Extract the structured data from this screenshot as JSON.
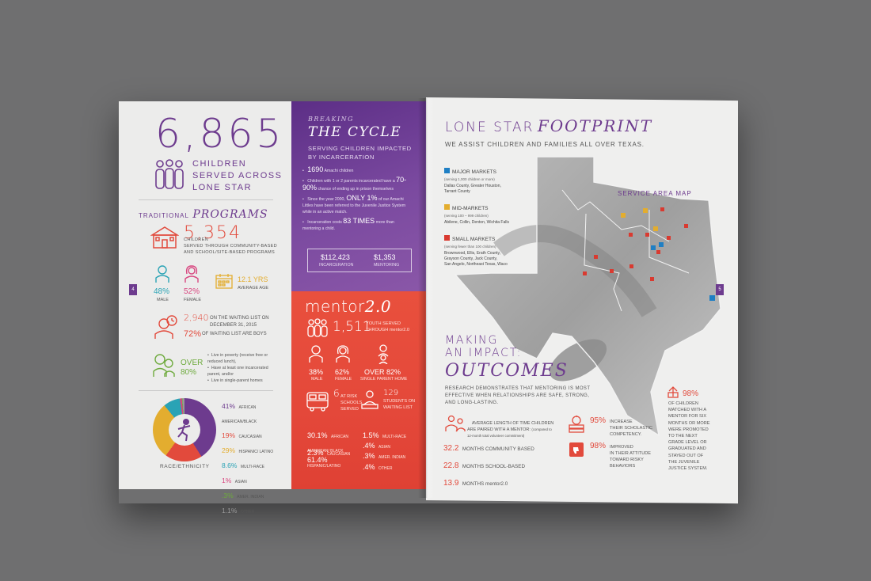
{
  "left": {
    "big_number": "6,865",
    "children_served": "CHILDREN\nSERVED ACROSS\nLONE STAR",
    "programs_label_small": "TRADITIONAL",
    "programs_label_big": "PROGRAMS",
    "community_number": "5,354",
    "community_text": "CHILDREN\nSERVED THROUGH COMMUNITY-BASED\nAND SCHOOL/SITE-BASED PROGRAMS",
    "male_pct": "48%",
    "male_label": "MALE",
    "female_pct": "52%",
    "female_label": "FEMALE",
    "avg_age": "12.1 YRS",
    "avg_age_label": "AVERAGE AGE",
    "waiting_number": "2,940",
    "waiting_text": "ON THE WAITING LIST ON\nDECEMBER 31, 2015",
    "boys_pct": "72%",
    "boys_text": "OF WAITING LIST ARE BOYS",
    "over_pct": "OVER\n80%",
    "over_bullets": [
      "Live in poverty (receive free or reduced lunch),",
      "Have at least one incarcerated parent, and/or",
      "Live in single-parent homes"
    ],
    "page_number": "4",
    "race_label": "RACE/ETHNICITY",
    "race": [
      {
        "pct": "41%",
        "label": "AFRICAN AMERICAN/BLACK",
        "color": "#6d3b8e"
      },
      {
        "pct": "19%",
        "label": "CAUCASIAN",
        "color": "#e24a3c"
      },
      {
        "pct": "29%",
        "label": "HISPANIC/ LATINO",
        "color": "#e3ad2f"
      },
      {
        "pct": "8.6%",
        "label": "MULTI-RACE",
        "color": "#2aa3b5"
      },
      {
        "pct": "1%",
        "label": "ASIAN",
        "color": "#d8467f"
      },
      {
        "pct": ".3%",
        "label": "AMER. INDIAN",
        "color": "#6eaa3d"
      },
      {
        "pct": "1.1%",
        "label": "OTHER",
        "color": "#999999"
      }
    ]
  },
  "purple": {
    "breaking": "BREAKING",
    "the_cycle": "THE CYCLE",
    "serving": "SERVING CHILDREN IMPACTED\nBY INCARCERATION",
    "bullets": [
      {
        "pre": "",
        "big": "1690",
        "post": " Amachi children"
      },
      {
        "pre": "Children with 1 or 2 parents incarcerated have a ",
        "big": "70-90%",
        "post": " chance of ending up in prison themselves"
      },
      {
        "pre": "Since the year 2000, ",
        "big": "ONLY 1%",
        "post": " of our Amachi Littles have been referred to the Juvenile Justice System while in an active match."
      },
      {
        "pre": "Incarceration costs ",
        "big": "83 TIMES",
        "post": " more than mentoring a child."
      }
    ],
    "incarceration_cost": "$112,423",
    "incarceration_label": "INCARCERATION",
    "mentoring_cost": "$1,353",
    "mentoring_label": "MENTORING"
  },
  "red": {
    "title_plain": "mentor",
    "title_italic": "2.0",
    "youth_number": "1,511",
    "youth_text": "YOUTH SERVED\nTHROUGH mentor2.0",
    "male_pct": "38%",
    "male_label": "MALE",
    "female_pct": "62%",
    "female_label": "FEMALE",
    "over_pct": "OVER 82%",
    "single_parent": "SINGLE PARENT HOME",
    "schools_number": "6",
    "schools_text": "AT RISK\nSCHOOLS\nSERVED",
    "students_number": "129",
    "students_text": "STUDENTS ON\nWAITING LIST",
    "race": [
      {
        "pct": "30.1%",
        "label": "AFRICAN AMERICAN/ BLACK"
      },
      {
        "pct": "1.5%",
        "label": "MULTI-RACE"
      },
      {
        "pct": "2.3%",
        "label": "CAUCASIAN"
      },
      {
        "pct": ".4%",
        "label": "ASIAN"
      },
      {
        "pct": "61.4%",
        "label": "HISPANIC/LATINO"
      },
      {
        "pct": ".3%",
        "label": "AMER. INDIAN"
      },
      {
        "pct": ".4%",
        "label": "OTHER"
      }
    ]
  },
  "right": {
    "title_plain": "LONE STAR",
    "title_italic": "FOOTPRINT",
    "subtitle": "WE ASSIST CHILDREN AND FAMILIES ALL OVER TEXAS.",
    "map_label": "SERVICE AREA MAP",
    "markets": [
      {
        "name": "MAJOR MARKETS",
        "note": "(serving 1,000 children or more)",
        "cities": "Dallas County, Greater Houston,\nTarrant County",
        "color": "#1f7fc4"
      },
      {
        "name": "MID-MARKETS",
        "note": "(serving 100 – 999 children)",
        "cities": "Abilene, Collin, Denton, Wichita Falls",
        "color": "#e3ad2f"
      },
      {
        "name": "SMALL MARKETS",
        "note": "(serving fewer than 100 children)",
        "cities": "Brownwood, Ellis, Erath County,\nGrayson County, Jack County,\nSan Angelo, Northeast Texas, Waco",
        "color": "#d93a30"
      }
    ],
    "impact_plain": "MAKING\nAN IMPACT:",
    "impact_italic": "OUTCOMES",
    "research": "RESEARCH DEMONSTRATES THAT MENTORING IS MOST\nEFFECTIVE WHEN RELATIONSHIPS ARE SAFE, STRONG,\nAND LONG-LASTING.",
    "avg_length": "AVERAGE LENGTH OF TIME CHILDREN\nARE PAIRED WITH A MENTOR:",
    "avg_note": "(compared to\n12-month total volunteer commitment)",
    "months": [
      {
        "num": "32.2",
        "label": "MONTHS COMMUNITY BASED"
      },
      {
        "num": "22.8",
        "label": "MONTHS SCHOOL-BASED"
      },
      {
        "num": "13.9",
        "label": "MONTHS mentor2.0"
      }
    ],
    "scholastic_pct": "95%",
    "scholastic_text": "INCREASE\nTHEIR SCHOLASTIC\nCOMPETENCY.",
    "attitude_pct": "98%",
    "attitude_text": "IMPROVED\nIN THEIR ATTITUDE\nTOWARD RISKY\nBEHAVIORS",
    "promoted_pct": "98%",
    "promoted_text": "OF CHILDREN\nMATCHED WITH A\nMENTOR FOR SIX\nMONTHS OR MORE\nWERE PROMOTED\nTO THE NEXT\nGRADE LEVEL OR\nGRADUATED AND\nSTAYED OUT OF\nTHE JUVENILE\nJUSTICE SYSTEM.",
    "page_number": "5"
  }
}
